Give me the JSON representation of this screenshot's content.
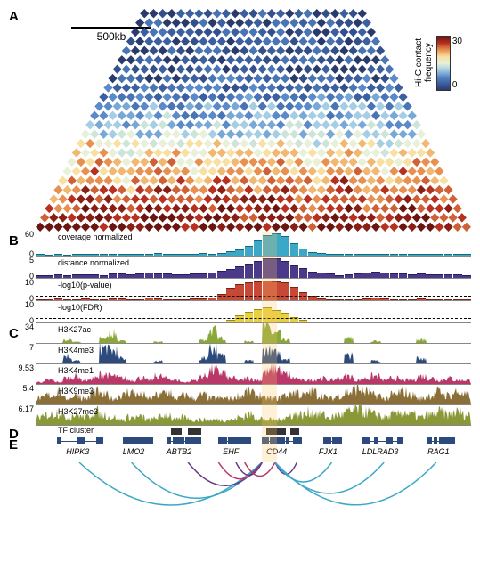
{
  "panel_labels": {
    "A": "A",
    "B": "B",
    "C": "C",
    "D": "D",
    "E": "E"
  },
  "scale_bar": "500kb",
  "colorbar": {
    "label": "Hi-C contact\nfrequency",
    "min": 0,
    "max": 30,
    "stops": [
      "#2a3b6b",
      "#3c5fa0",
      "#5a8ac8",
      "#a5cde3",
      "#e8f0d8",
      "#f7e0a0",
      "#e89050",
      "#b83020",
      "#6b1510"
    ]
  },
  "heatmap": {
    "n": 48,
    "palette": [
      "#2a3b6b",
      "#34508a",
      "#3c5fa0",
      "#4a75b5",
      "#5a8ac8",
      "#78a8d6",
      "#a5cde3",
      "#cde4d8",
      "#e8f0d8",
      "#f7e0a0",
      "#f0b870",
      "#e89050",
      "#d06035",
      "#b83020",
      "#8a2015",
      "#6b1510"
    ]
  },
  "highlight": {
    "left_pct": 52,
    "width_pct": 3.5
  },
  "panel_b": [
    {
      "label": "coverage normalized",
      "ymax": 60,
      "ymin": 0,
      "color": "#3ca8c8",
      "stroke": "#16697a",
      "values": [
        2,
        1,
        2,
        1,
        2,
        3,
        2,
        2,
        3,
        3,
        3,
        2,
        3,
        4,
        3,
        2,
        2,
        3,
        4,
        3,
        5,
        8,
        12,
        22,
        36,
        48,
        52,
        44,
        28,
        14,
        7,
        4,
        3,
        2,
        2,
        2,
        2,
        3,
        2,
        3,
        2,
        2,
        3,
        2,
        2,
        3,
        2,
        2
      ]
    },
    {
      "label": "distance normalized",
      "ymax": 5,
      "ymin": 0,
      "color": "#4b3a8a",
      "stroke": "#2a1d5e",
      "values": [
        0.5,
        0.4,
        0.7,
        0.5,
        0.6,
        0.7,
        0.6,
        0.5,
        0.8,
        0.9,
        0.7,
        0.8,
        1.0,
        0.9,
        0.8,
        0.6,
        0.7,
        0.9,
        0.8,
        1.0,
        1.4,
        1.9,
        2.5,
        3.2,
        3.8,
        4.3,
        4.4,
        3.7,
        2.8,
        2.0,
        1.3,
        1.0,
        0.8,
        0.5,
        0.6,
        0.8,
        1.0,
        1.2,
        1.0,
        0.9,
        0.8,
        0.7,
        0.8,
        0.6,
        0.7,
        0.6,
        0.7,
        0.5
      ]
    },
    {
      "label": "-log10(p-value)",
      "ymax": 10,
      "ymin": 0,
      "color": "#c84838",
      "stroke": "#7a2015",
      "dashed_at": 2.0,
      "values": [
        0,
        0,
        0.3,
        0,
        0.2,
        0.4,
        0,
        0,
        0.3,
        0.5,
        0,
        0.2,
        0.8,
        0.5,
        0.2,
        0,
        0,
        0.4,
        0.3,
        0.8,
        2.5,
        5.5,
        7.2,
        8.0,
        8.5,
        8.7,
        8.4,
        7.8,
        6.0,
        3.2,
        1.5,
        0.5,
        0.2,
        0,
        0,
        0.2,
        0.6,
        1.0,
        0.5,
        0.2,
        0,
        0,
        0.3,
        0,
        0.2,
        0,
        0.2,
        0
      ]
    },
    {
      "label": "-log10(FDR)",
      "ymax": 10,
      "ymin": 0,
      "color": "#e8d040",
      "stroke": "#a08815",
      "dashed_at": 2.0,
      "values": [
        0,
        0,
        0,
        0,
        0,
        0,
        0,
        0,
        0,
        0,
        0,
        0,
        0,
        0,
        0,
        0,
        0,
        0,
        0,
        0,
        0,
        1.0,
        2.8,
        4.5,
        6.0,
        6.5,
        5.5,
        4.0,
        2.2,
        0.8,
        0,
        0,
        0,
        0,
        0,
        0,
        0,
        0,
        0,
        0,
        0,
        0,
        0,
        0,
        0,
        0,
        0,
        0
      ]
    }
  ],
  "panel_c": [
    {
      "label": "H3K27ac",
      "ymax": 34,
      "color": "#8aa838"
    },
    {
      "label": "H3K4me3",
      "ymax": 7,
      "color": "#2c4b7c"
    },
    {
      "label": "H3K4me1",
      "ymax": 9.53,
      "color": "#b8386a"
    },
    {
      "label": "H3K9me3",
      "ymax": 5.4,
      "color": "#8a7038"
    },
    {
      "label": "H3K27me3",
      "ymax": 6.17,
      "color": "#8a9838"
    }
  ],
  "signal_patterns": {
    "H3K27ac": "0,0,0,5,2,0,0,8,15,3,0,0,0,2,0,0,0,0,5,20,8,0,0,3,0,25,15,5,0,0,0,0,0,0,8,0,0,3,0,0,0,0,5,0,0,0,0,0",
    "H3K4me3": "0,0,0,3,1,0,0,6,5,2,0,0,0,1,0,0,0,0,2,6,3,0,0,1,0,5,4,2,0,0,0,0,0,0,3,0,0,1,0,0,0,0,2,0,0,0,0,0",
    "H3K4me1": "1,2,1,3,4,2,3,5,4,3,2,3,2,4,3,2,1,2,4,7,6,3,2,3,2,6,8,5,3,2,2,3,2,3,4,2,3,4,2,3,2,2,4,3,2,3,2,2",
    "H3K9me3": "2,3,4,2,3,2,4,3,2,3,4,3,2,3,4,2,3,2,3,2,2,2,3,4,3,2,2,3,4,3,4,3,2,3,4,5,4,3,2,3,4,3,2,3,4,3,4,3",
    "H3K27me3": "3,4,5,3,4,3,5,4,3,2,3,3,2,3,4,2,3,2,2,2,2,2,3,4,3,2,2,3,4,4,5,4,3,4,5,6,5,4,3,4,5,4,3,4,5,4,5,4"
  },
  "tf_cluster": {
    "label": "TF cluster",
    "boxes": [
      {
        "left_pct": 31,
        "width_pct": 2.5
      },
      {
        "left_pct": 35,
        "width_pct": 3
      },
      {
        "left_pct": 53,
        "width_pct": 4.5
      },
      {
        "left_pct": 58.5,
        "width_pct": 2
      }
    ]
  },
  "genes": [
    {
      "name": "HIPK3",
      "start_pct": 5,
      "end_pct": 15,
      "label_pct": 7
    },
    {
      "name": "LMO2",
      "start_pct": 20,
      "end_pct": 26,
      "label_pct": 20
    },
    {
      "name": "ABTB2",
      "start_pct": 30,
      "end_pct": 38,
      "label_pct": 30
    },
    {
      "name": "EHF",
      "start_pct": 42,
      "end_pct": 49,
      "label_pct": 43
    },
    {
      "name": "CD44",
      "start_pct": 52,
      "end_pct": 60,
      "label_pct": 53
    },
    {
      "name": "FJX1",
      "start_pct": 66,
      "end_pct": 69,
      "label_pct": 65
    },
    {
      "name": "LDLRAD3",
      "start_pct": 75,
      "end_pct": 84,
      "label_pct": 75
    },
    {
      "name": "RAG1",
      "start_pct": 90,
      "end_pct": 96,
      "label_pct": 90
    }
  ],
  "arcs": [
    {
      "from_pct": 52,
      "to_pct": 10,
      "color": "#3ca8c8"
    },
    {
      "from_pct": 52,
      "to_pct": 22,
      "color": "#3ca8c8"
    },
    {
      "from_pct": 52,
      "to_pct": 35,
      "color": "#6a3a8a"
    },
    {
      "from_pct": 52,
      "to_pct": 42,
      "color": "#b8386a"
    },
    {
      "from_pct": 52,
      "to_pct": 46,
      "color": "#6a3a8a"
    },
    {
      "from_pct": 55,
      "to_pct": 48,
      "color": "#b8386a"
    },
    {
      "from_pct": 55,
      "to_pct": 60,
      "color": "#6a3a8a"
    },
    {
      "from_pct": 55,
      "to_pct": 68,
      "color": "#3ca8c8"
    },
    {
      "from_pct": 55,
      "to_pct": 80,
      "color": "#3ca8c8"
    },
    {
      "from_pct": 55,
      "to_pct": 92,
      "color": "#3ca8c8"
    }
  ]
}
